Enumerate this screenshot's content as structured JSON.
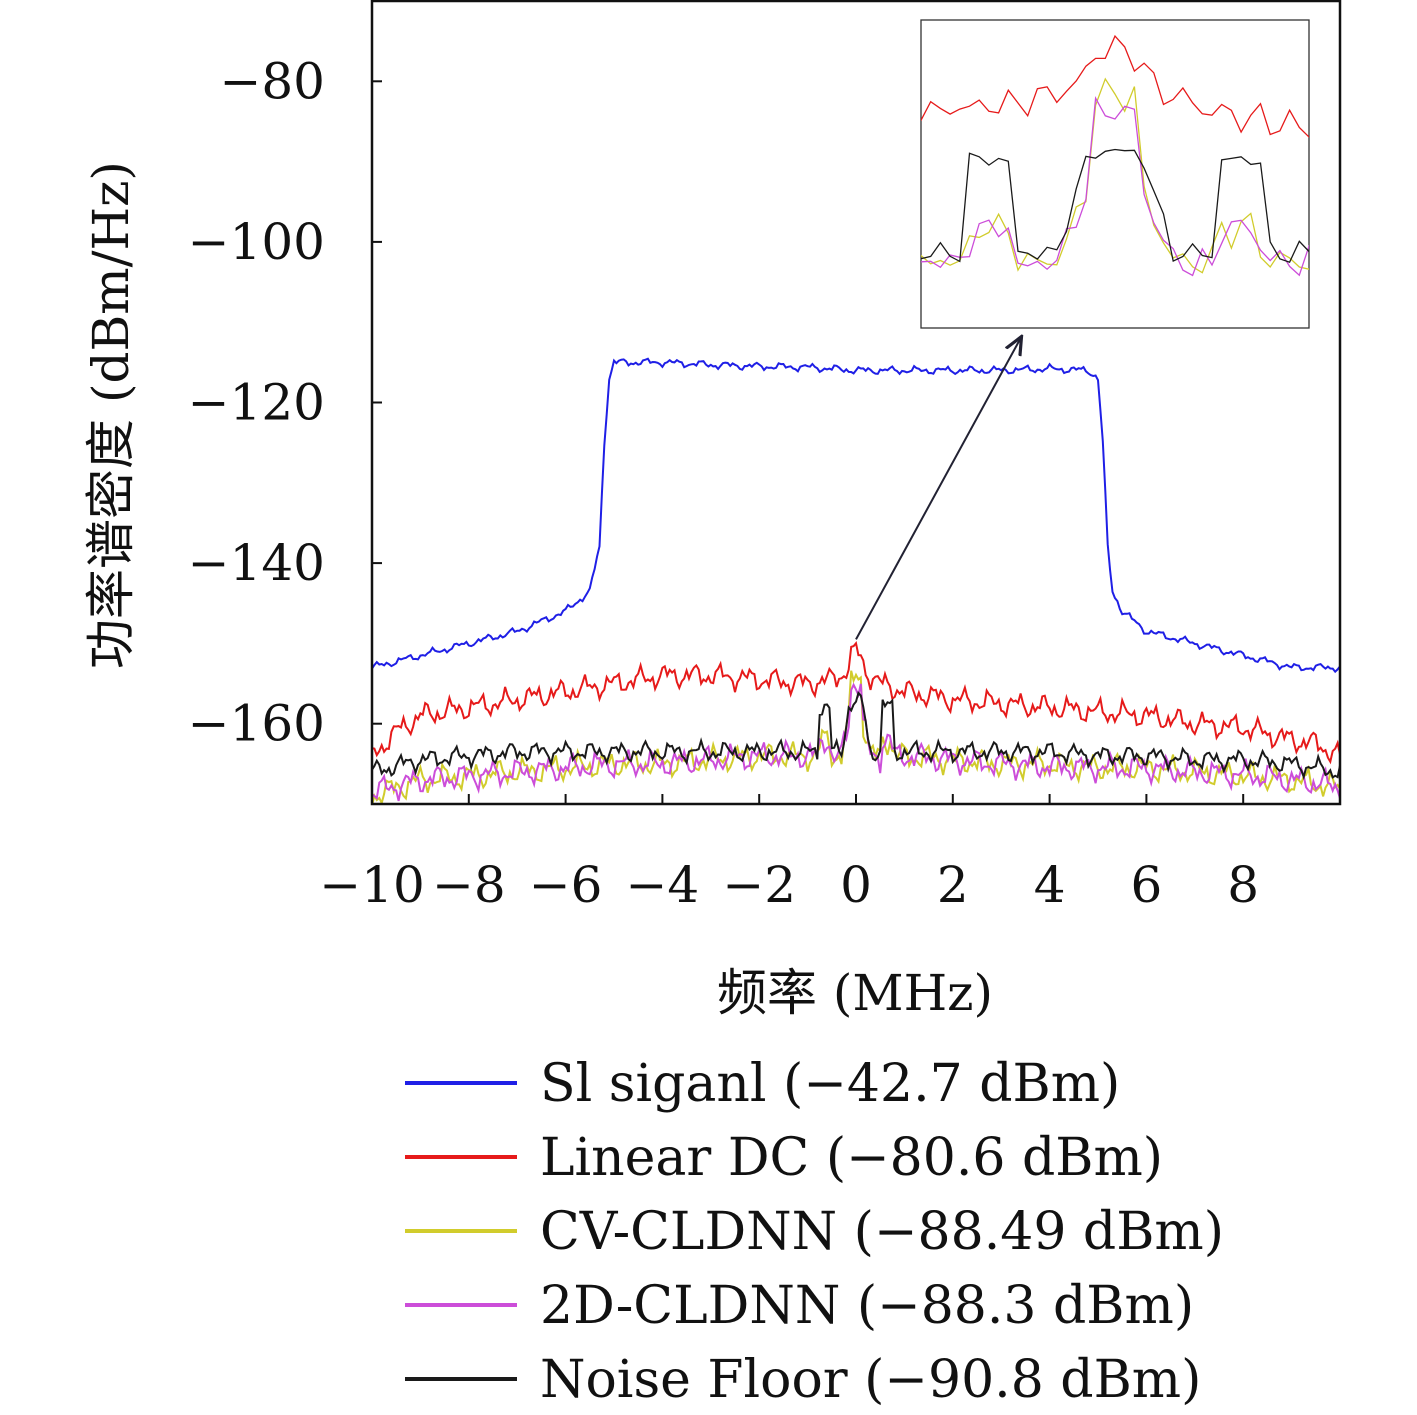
{
  "chart_data": {
    "type": "line",
    "title": "",
    "xlabel": "频率 (MHz)",
    "ylabel": "功率谱密度 (dBm/Hz)",
    "xlim": [
      -10,
      10
    ],
    "ylim": [
      -170,
      -70
    ],
    "xticks": [
      -10,
      -8,
      -6,
      -4,
      -2,
      0,
      2,
      4,
      6,
      8
    ],
    "xtick_labels": [
      "−10",
      "−8",
      "−6",
      "−4",
      "−2",
      "0",
      "2",
      "4",
      "6",
      "8"
    ],
    "yticks": [
      -160,
      -140,
      -120,
      -100,
      -80
    ],
    "ytick_labels": [
      "−160",
      "−140",
      "−120",
      "−100",
      "−80"
    ],
    "grid": false,
    "legend_position": "below",
    "series": [
      {
        "name": "Sl siganl (−42.7 dBm)",
        "color": "#1f1fe6",
        "x": [
          -10,
          -9,
          -8,
          -7,
          -6,
          -5.5,
          -5.3,
          -5.2,
          -5.1,
          -5,
          -4,
          -3,
          -2,
          -1,
          0,
          1,
          2,
          3,
          4,
          4.8,
          5,
          5.1,
          5.2,
          5.3,
          5.5,
          6,
          7,
          8,
          9,
          10
        ],
        "y": [
          -153,
          -151.5,
          -150,
          -148.5,
          -146,
          -143.5,
          -138,
          -125,
          -117,
          -115,
          -115,
          -115.3,
          -115.5,
          -115.6,
          -116,
          -116,
          -116,
          -116,
          -115.8,
          -116,
          -117,
          -125,
          -138,
          -143.5,
          -146,
          -148.5,
          -150,
          -151.5,
          -153,
          -153
        ]
      },
      {
        "name": "Linear DC (−80.6 dBm)",
        "color": "#e61a1a",
        "x": [
          -10,
          -9.5,
          -9,
          -8,
          -7,
          -6,
          -5,
          -4,
          -3,
          -2,
          -1,
          -0.5,
          -0.2,
          -0.1,
          0,
          0.1,
          0.2,
          0.5,
          1,
          2,
          3,
          4,
          5,
          6,
          7,
          8,
          9,
          9.5,
          10
        ],
        "y": [
          -164,
          -161,
          -159,
          -158,
          -157,
          -156,
          -155,
          -154,
          -154,
          -154.5,
          -155,
          -154.5,
          -153.5,
          -151.5,
          -151.2,
          -151.5,
          -153.5,
          -155,
          -156,
          -157,
          -157.5,
          -158,
          -158.5,
          -159,
          -160,
          -160.5,
          -162,
          -162.5,
          -164
        ]
      },
      {
        "name": "CV-CLDNN (−88.49 dBm)",
        "color": "#d1cc2c",
        "x": [
          -10,
          -9,
          -8,
          -7,
          -6,
          -5,
          -4,
          -3,
          -2,
          -1,
          -0.8,
          -0.7,
          -0.55,
          -0.5,
          -0.3,
          -0.15,
          -0.1,
          0,
          0.1,
          0.15,
          0.3,
          0.5,
          0.55,
          0.7,
          0.8,
          1,
          2,
          3,
          4,
          5,
          6,
          7,
          8,
          9,
          10
        ],
        "y": [
          -169,
          -167,
          -166.5,
          -166,
          -165.5,
          -165,
          -165,
          -164.5,
          -164,
          -164,
          -164,
          -162,
          -162,
          -164,
          -164,
          -160,
          -154,
          -154,
          -154,
          -160,
          -164,
          -164,
          -162,
          -162,
          -164,
          -164,
          -164.5,
          -165,
          -165,
          -165.5,
          -165.5,
          -166,
          -166.5,
          -167,
          -168
        ]
      },
      {
        "name": "2D-CLDNN (−88.3 dBm)",
        "color": "#cc4dd9",
        "x": [
          -10,
          -9,
          -8,
          -7,
          -6,
          -5,
          -4,
          -3,
          -2,
          -1,
          -0.8,
          -0.7,
          -0.55,
          -0.5,
          -0.3,
          -0.15,
          -0.1,
          0,
          0.1,
          0.15,
          0.3,
          0.5,
          0.55,
          0.7,
          0.8,
          1,
          2,
          3,
          4,
          5,
          6,
          7,
          8,
          9,
          10
        ],
        "y": [
          -168.5,
          -167,
          -166.5,
          -166,
          -165.5,
          -165,
          -165,
          -164.5,
          -164,
          -164,
          -164,
          -162,
          -162,
          -164.3,
          -164,
          -160,
          -155,
          -155,
          -155,
          -160,
          -164,
          -164.3,
          -162,
          -162,
          -164,
          -164,
          -164.5,
          -165,
          -165.3,
          -165.5,
          -165.5,
          -166,
          -166.3,
          -167,
          -167.8
        ]
      },
      {
        "name": "Noise Floor (−90.8 dBm)",
        "color": "#1a1a1a",
        "x": [
          -10,
          -9,
          -8,
          -7,
          -6,
          -5,
          -4,
          -3,
          -2,
          -1,
          -0.8,
          -0.75,
          -0.7,
          -0.55,
          -0.5,
          -0.3,
          -0.15,
          -0.1,
          0,
          0.1,
          0.15,
          0.3,
          0.5,
          0.55,
          0.7,
          0.75,
          0.8,
          1,
          2,
          3,
          4,
          5,
          6,
          7,
          8,
          9,
          10
        ],
        "y": [
          -166,
          -164.5,
          -164,
          -163.5,
          -163.5,
          -163.5,
          -163.5,
          -163.5,
          -163.5,
          -163.5,
          -163.5,
          -158,
          -157.8,
          -158,
          -163.5,
          -163.5,
          -158,
          -157.5,
          -157.3,
          -157.5,
          -158,
          -163.5,
          -163.5,
          -158,
          -157.8,
          -158,
          -163.5,
          -163.5,
          -163.5,
          -163.5,
          -163.5,
          -164,
          -164,
          -164.5,
          -164.5,
          -165,
          -166
        ]
      }
    ],
    "annotations": [
      {
        "type": "arrow",
        "from": [
          0,
          -149.5
        ],
        "to": [
          3.4,
          -112
        ]
      }
    ],
    "inset": {
      "description_free": true,
      "xlim": [
        -1,
        1
      ],
      "ylim": [
        -168,
        -149.5
      ]
    }
  }
}
